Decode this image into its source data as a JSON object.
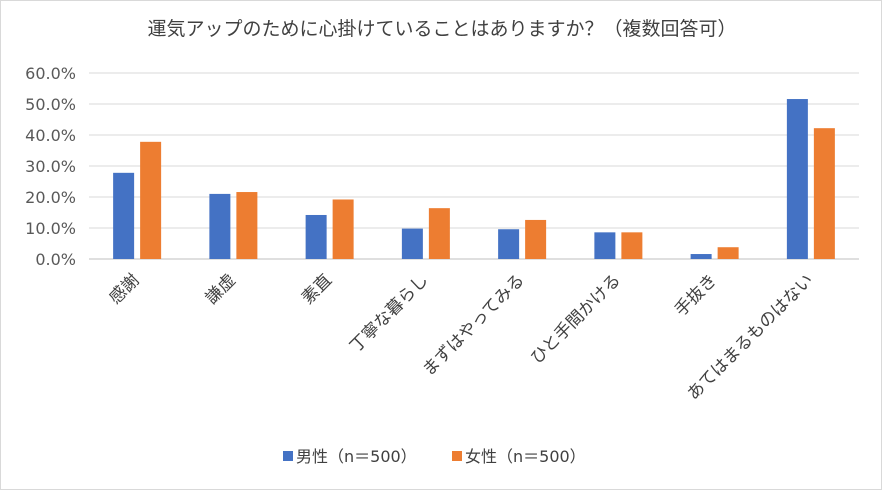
{
  "chart_data": {
    "type": "bar",
    "title": "運気アップのために心掛けていることはありますか？（複数回答可）",
    "categories": [
      "感謝",
      "謙虚",
      "素直",
      "丁寧な暮らし",
      "まずはやってみる",
      "ひと手間かける",
      "手抜き",
      "あてはまるものはない"
    ],
    "series": [
      {
        "name": "男性（n＝500）",
        "color": "#4472c4",
        "values": [
          27.8,
          21.0,
          14.2,
          9.8,
          9.6,
          8.6,
          1.6,
          51.6
        ]
      },
      {
        "name": "女性（n＝500）",
        "color": "#ed7d31",
        "values": [
          37.8,
          21.6,
          19.2,
          16.4,
          12.6,
          8.6,
          3.8,
          42.2
        ]
      }
    ],
    "ylim": [
      0,
      60
    ],
    "yticks": [
      "0.0%",
      "10.0%",
      "20.0%",
      "30.0%",
      "40.0%",
      "50.0%",
      "60.0%"
    ],
    "xlabel": "",
    "ylabel": "",
    "grid": true,
    "legend_position": "bottom"
  }
}
